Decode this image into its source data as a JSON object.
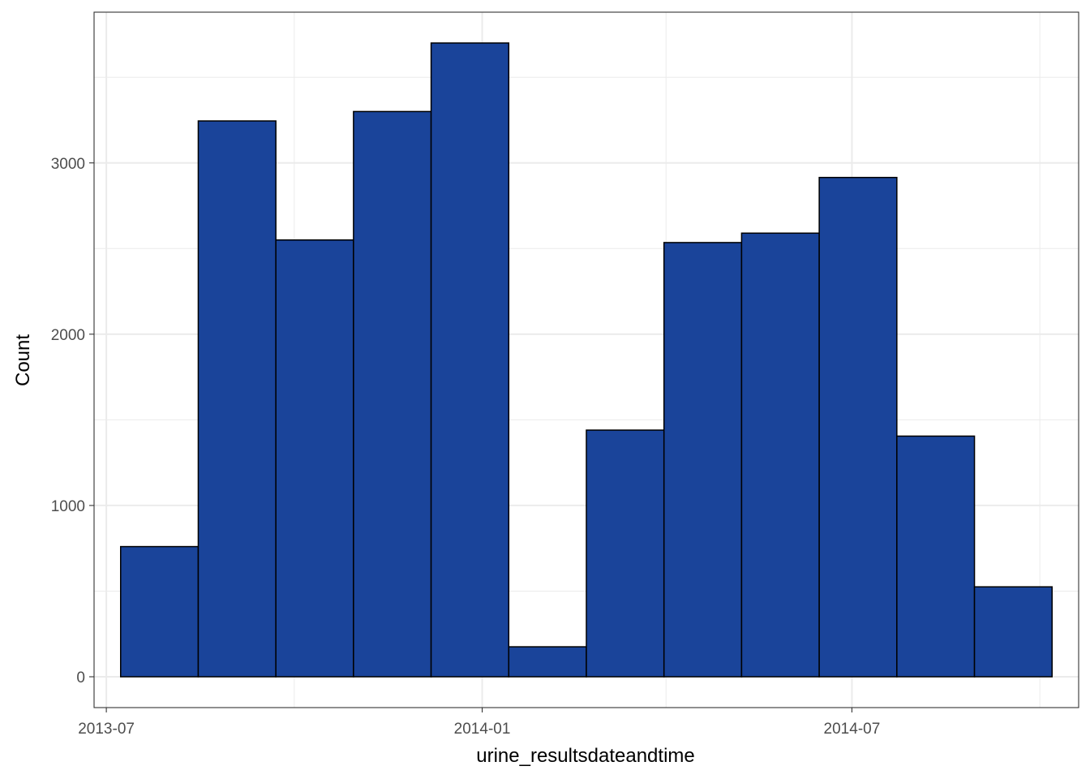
{
  "chart_data": {
    "type": "bar",
    "title": "",
    "xlabel": "urine_resultsdateandtime",
    "ylabel": "Count",
    "x_range": [
      "2013-06-25",
      "2014-10-20"
    ],
    "ylim": [
      -180,
      3880
    ],
    "x_ticks": [
      {
        "date": "2013-07-01",
        "label": "2013-07"
      },
      {
        "date": "2014-01-01",
        "label": "2014-01"
      },
      {
        "date": "2014-07-01",
        "label": "2014-07"
      }
    ],
    "x_minor_ticks": [
      "2013-10-01",
      "2014-04-01",
      "2014-10-01"
    ],
    "y_ticks": [
      0,
      1000,
      2000,
      3000
    ],
    "y_minor_ticks": [
      500,
      1500,
      2500,
      3500
    ],
    "bins": [
      {
        "start": "2013-07-08",
        "end": "2013-08-15",
        "count": 760
      },
      {
        "start": "2013-08-15",
        "end": "2013-09-22",
        "count": 3245
      },
      {
        "start": "2013-09-22",
        "end": "2013-10-30",
        "count": 2550
      },
      {
        "start": "2013-10-30",
        "end": "2013-12-07",
        "count": 3300
      },
      {
        "start": "2013-12-07",
        "end": "2014-01-14",
        "count": 3700
      },
      {
        "start": "2014-01-14",
        "end": "2014-02-21",
        "count": 175
      },
      {
        "start": "2014-02-21",
        "end": "2014-03-31",
        "count": 1440
      },
      {
        "start": "2014-03-31",
        "end": "2014-05-08",
        "count": 2535
      },
      {
        "start": "2014-05-08",
        "end": "2014-06-15",
        "count": 2590
      },
      {
        "start": "2014-06-15",
        "end": "2014-07-23",
        "count": 2915
      },
      {
        "start": "2014-07-23",
        "end": "2014-08-30",
        "count": 1405
      },
      {
        "start": "2014-08-30",
        "end": "2014-10-07",
        "count": 525
      }
    ],
    "bar_fill": "#1a449a",
    "bar_stroke": "#000000",
    "grid": true,
    "grid_color": "#ebebeb",
    "panel_border": "#333333",
    "legend": "none"
  }
}
